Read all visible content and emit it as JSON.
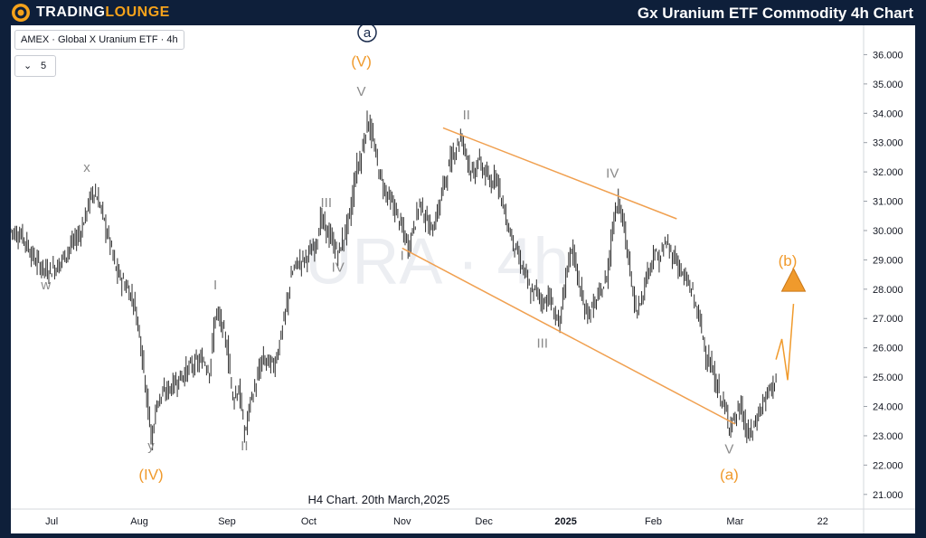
{
  "header": {
    "logo_text_part1": "TRADING",
    "logo_text_part2": "LOUNGE",
    "chart_heading": "Gx Uranium ETF Commodity 4h Chart"
  },
  "toolbar": {
    "symbol_label": "AMEX · Global X Uranium ETF · 4h",
    "interval_value": "5",
    "interval_icon": "chevron-down-icon"
  },
  "colors": {
    "header_bg": "#0e1f3a",
    "accent_orange": "#f09a2c",
    "bar_color": "#2d2d2d",
    "channel_line": "#f0a050",
    "wave_grey": "#8a8a8a",
    "watermark": "#eceef2"
  },
  "chart_data": {
    "type": "ohlc",
    "title": "Gx Uranium ETF Commodity 4h Chart",
    "caption": "H4 Chart. 20th March,2025",
    "watermark": "URA · 4h",
    "ylim": [
      20.5,
      37
    ],
    "y_ticks": [
      "21.000",
      "22.000",
      "23.000",
      "24.000",
      "25.000",
      "26.000",
      "27.000",
      "28.000",
      "29.000",
      "30.000",
      "31.000",
      "32.000",
      "33.000",
      "34.000",
      "35.000",
      "36.000"
    ],
    "x_ticks": [
      {
        "label": "Jul",
        "index": 7
      },
      {
        "label": "Aug",
        "index": 22
      },
      {
        "label": "Sep",
        "index": 37
      },
      {
        "label": "Oct",
        "index": 51
      },
      {
        "label": "Nov",
        "index": 67
      },
      {
        "label": "Dec",
        "index": 81
      },
      {
        "label": "2025",
        "index": 95
      },
      {
        "label": "Feb",
        "index": 110
      },
      {
        "label": "Mar",
        "index": 124
      },
      {
        "label": "22",
        "index": 139
      }
    ],
    "price_path": [
      [
        0,
        30.0
      ],
      [
        2,
        29.8
      ],
      [
        4,
        29.0
      ],
      [
        6,
        28.6
      ],
      [
        8,
        28.8
      ],
      [
        10,
        29.4
      ],
      [
        12,
        30.0
      ],
      [
        14,
        31.4
      ],
      [
        15,
        31.0
      ],
      [
        17,
        29.5
      ],
      [
        18,
        28.6
      ],
      [
        20,
        28.0
      ],
      [
        21,
        27.6
      ],
      [
        22,
        26.5
      ],
      [
        23,
        24.8
      ],
      [
        24,
        22.8
      ],
      [
        25,
        24.2
      ],
      [
        27,
        24.6
      ],
      [
        29,
        25.0
      ],
      [
        31,
        25.4
      ],
      [
        33,
        25.6
      ],
      [
        34,
        25.2
      ],
      [
        35,
        27.2
      ],
      [
        36,
        26.8
      ],
      [
        37,
        26.0
      ],
      [
        38,
        24.3
      ],
      [
        39,
        24.6
      ],
      [
        40,
        23.0
      ],
      [
        41,
        24.2
      ],
      [
        42,
        24.8
      ],
      [
        43,
        25.6
      ],
      [
        45,
        25.4
      ],
      [
        46,
        26.2
      ],
      [
        47,
        27.2
      ],
      [
        48,
        28.5
      ],
      [
        49,
        28.9
      ],
      [
        50,
        29.0
      ],
      [
        52,
        29.4
      ],
      [
        53,
        30.4
      ],
      [
        55,
        29.6
      ],
      [
        56,
        29.2
      ],
      [
        57,
        29.8
      ],
      [
        58,
        30.5
      ],
      [
        59,
        32.0
      ],
      [
        60,
        32.6
      ],
      [
        61,
        33.8
      ],
      [
        62,
        33.0
      ],
      [
        63,
        32.0
      ],
      [
        64,
        31.4
      ],
      [
        65,
        31.0
      ],
      [
        66,
        30.6
      ],
      [
        67,
        30.0
      ],
      [
        68,
        29.4
      ],
      [
        69,
        30.2
      ],
      [
        70,
        31.0
      ],
      [
        71,
        30.4
      ],
      [
        72,
        30.0
      ],
      [
        73,
        30.6
      ],
      [
        74,
        31.5
      ],
      [
        75,
        32.2
      ],
      [
        76,
        32.8
      ],
      [
        77,
        33.2
      ],
      [
        78,
        32.6
      ],
      [
        79,
        31.8
      ],
      [
        80,
        32.4
      ],
      [
        81,
        32.0
      ],
      [
        82,
        31.6
      ],
      [
        83,
        32.0
      ],
      [
        84,
        31.0
      ],
      [
        85,
        30.2
      ],
      [
        86,
        29.6
      ],
      [
        87,
        29.0
      ],
      [
        88,
        28.5
      ],
      [
        89,
        27.8
      ],
      [
        90,
        28.0
      ],
      [
        91,
        27.5
      ],
      [
        92,
        27.8
      ],
      [
        93,
        27.2
      ],
      [
        94,
        26.8
      ],
      [
        95,
        28.5
      ],
      [
        96,
        29.5
      ],
      [
        97,
        28.4
      ],
      [
        98,
        27.4
      ],
      [
        99,
        27.2
      ],
      [
        100,
        27.5
      ],
      [
        101,
        27.9
      ],
      [
        102,
        28.4
      ],
      [
        103,
        30.2
      ],
      [
        104,
        31.2
      ],
      [
        105,
        30.0
      ],
      [
        106,
        28.5
      ],
      [
        107,
        27.2
      ],
      [
        108,
        27.8
      ],
      [
        109,
        28.6
      ],
      [
        110,
        29.2
      ],
      [
        111,
        29.0
      ],
      [
        112,
        29.6
      ],
      [
        113,
        29.2
      ],
      [
        114,
        29.0
      ],
      [
        115,
        28.4
      ],
      [
        116,
        28.2
      ],
      [
        117,
        27.6
      ],
      [
        118,
        26.8
      ],
      [
        119,
        25.8
      ],
      [
        120,
        25.2
      ],
      [
        121,
        24.6
      ],
      [
        122,
        24.0
      ],
      [
        123,
        23.4
      ],
      [
        124,
        23.6
      ],
      [
        125,
        24.0
      ],
      [
        126,
        23.0
      ],
      [
        127,
        23.2
      ],
      [
        128,
        23.8
      ],
      [
        129,
        24.2
      ],
      [
        130,
        24.6
      ],
      [
        131,
        25.0
      ]
    ],
    "channel_lines": [
      {
        "from": [
          74,
          33.5
        ],
        "to": [
          114,
          30.4
        ]
      },
      {
        "from": [
          67,
          29.4
        ],
        "to": [
          124,
          23.4
        ]
      }
    ],
    "projection": [
      [
        131,
        25.6
      ],
      [
        132,
        26.3
      ],
      [
        133,
        24.9
      ],
      [
        134,
        27.5
      ]
    ],
    "projection_arrow_at": [
      134,
      28.3
    ],
    "wave_labels": [
      {
        "text": "w",
        "x": 6,
        "y": 28.0,
        "style": "grey"
      },
      {
        "text": "x",
        "x": 13,
        "y": 32.0,
        "style": "grey"
      },
      {
        "text": "y",
        "x": 24,
        "y": 22.5,
        "style": "grey"
      },
      {
        "text": "(IV)",
        "x": 24,
        "y": 21.5,
        "style": "orange"
      },
      {
        "text": "I",
        "x": 35,
        "y": 28.0,
        "style": "grey"
      },
      {
        "text": "II",
        "x": 40,
        "y": 22.5,
        "style": "grey"
      },
      {
        "text": "III",
        "x": 54,
        "y": 30.8,
        "style": "grey"
      },
      {
        "text": "IV",
        "x": 56,
        "y": 28.6,
        "style": "grey"
      },
      {
        "text": "V",
        "x": 60,
        "y": 34.6,
        "style": "grey"
      },
      {
        "text": "(V)",
        "x": 60,
        "y": 35.6,
        "style": "orange"
      },
      {
        "text": "a",
        "x": 61,
        "y": 36.6,
        "style": "circle"
      },
      {
        "text": "I",
        "x": 67,
        "y": 29.0,
        "style": "grey"
      },
      {
        "text": "II",
        "x": 78,
        "y": 33.8,
        "style": "grey"
      },
      {
        "text": "III",
        "x": 91,
        "y": 26.0,
        "style": "grey"
      },
      {
        "text": "IV",
        "x": 103,
        "y": 31.8,
        "style": "grey"
      },
      {
        "text": "V",
        "x": 123,
        "y": 22.4,
        "style": "grey"
      },
      {
        "text": "(a)",
        "x": 123,
        "y": 21.5,
        "style": "orange"
      },
      {
        "text": "(b)",
        "x": 133,
        "y": 28.8,
        "style": "orange"
      }
    ]
  }
}
